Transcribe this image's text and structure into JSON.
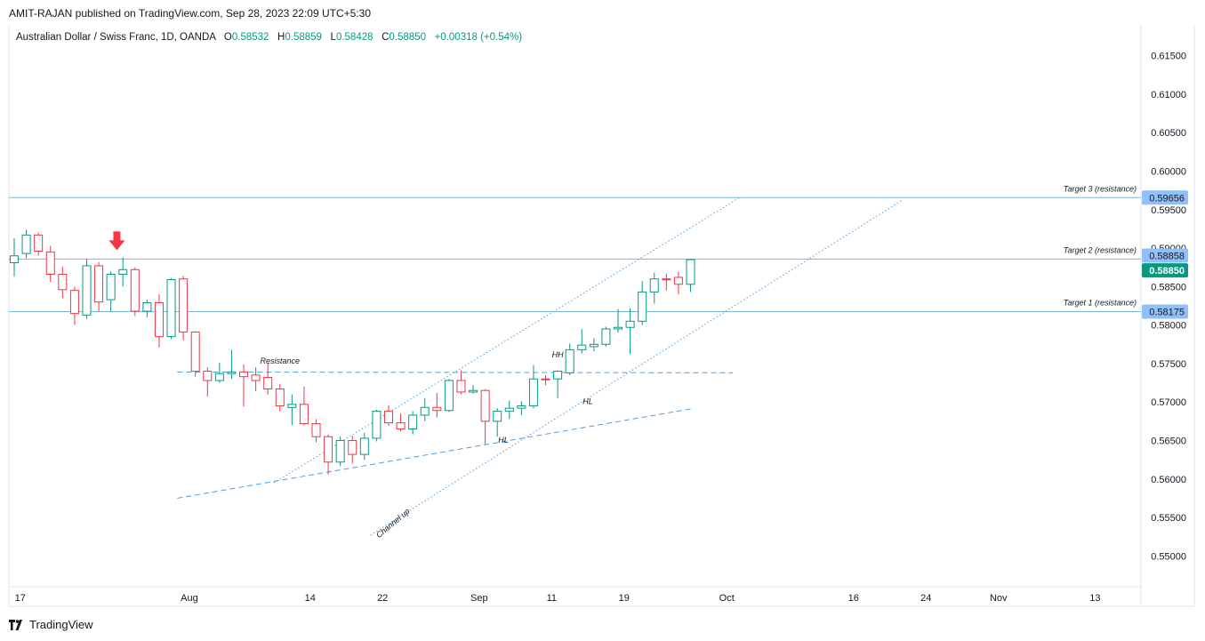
{
  "header": {
    "published": "AMIT-RAJAN published on TradingView.com, Sep 28, 2023 22:09 UTC+5:30"
  },
  "symbol": {
    "name": "Australian Dollar / Swiss Franc, 1D, OANDA",
    "open_label": "O",
    "open": "0.58532",
    "high_label": "H",
    "high": "0.58859",
    "low_label": "L",
    "low": "0.58428",
    "close_label": "C",
    "close": "0.58850",
    "change": "+0.00318 (+0.54%)"
  },
  "footer": {
    "brand": "TradingView"
  },
  "colors": {
    "up": "#089981",
    "down": "#f23645",
    "candle_up_fill": "#ffffff",
    "candle_down_fill": "#ffffff",
    "hline": "#7fb5d5",
    "channel": "#4f9fe0",
    "price_tag_blue": "#90bff9",
    "price_tag_green": "#089981",
    "arrow": "#f23645"
  },
  "chart_data": {
    "type": "candlestick",
    "instrument": "AUDCHF",
    "timeframe": "1D",
    "ylim": [
      0.546,
      0.619
    ],
    "yticks": [
      "0.61500",
      "0.61000",
      "0.60500",
      "0.60000",
      "0.59500",
      "0.59000",
      "0.58500",
      "0.58000",
      "0.57500",
      "0.57000",
      "0.56500",
      "0.56000",
      "0.55500",
      "0.55000"
    ],
    "xticks": [
      {
        "label": "17",
        "idx": 0.5
      },
      {
        "label": "Aug",
        "idx": 14.5
      },
      {
        "label": "14",
        "idx": 24.5
      },
      {
        "label": "22",
        "idx": 30.5
      },
      {
        "label": "Sep",
        "idx": 38.5
      },
      {
        "label": "11",
        "idx": 44.5
      },
      {
        "label": "19",
        "idx": 50.5
      },
      {
        "label": "Oct",
        "idx": 59
      },
      {
        "label": "16",
        "idx": 69.5
      },
      {
        "label": "24",
        "idx": 75.5
      },
      {
        "label": "Nov",
        "idx": 81.5
      },
      {
        "label": "13",
        "idx": 89.5
      }
    ],
    "candles": [
      {
        "o": 0.5881,
        "h": 0.5913,
        "l": 0.5863,
        "c": 0.589
      },
      {
        "o": 0.5893,
        "h": 0.5924,
        "l": 0.5887,
        "c": 0.5917
      },
      {
        "o": 0.5917,
        "h": 0.592,
        "l": 0.589,
        "c": 0.5896
      },
      {
        "o": 0.5895,
        "h": 0.5903,
        "l": 0.5856,
        "c": 0.5866
      },
      {
        "o": 0.5866,
        "h": 0.5876,
        "l": 0.5835,
        "c": 0.5846
      },
      {
        "o": 0.5845,
        "h": 0.585,
        "l": 0.58,
        "c": 0.5815
      },
      {
        "o": 0.5813,
        "h": 0.5886,
        "l": 0.5808,
        "c": 0.5877
      },
      {
        "o": 0.5877,
        "h": 0.5882,
        "l": 0.5818,
        "c": 0.583
      },
      {
        "o": 0.5833,
        "h": 0.587,
        "l": 0.5818,
        "c": 0.5866
      },
      {
        "o": 0.5866,
        "h": 0.5888,
        "l": 0.585,
        "c": 0.5872
      },
      {
        "o": 0.5872,
        "h": 0.5875,
        "l": 0.5812,
        "c": 0.5818
      },
      {
        "o": 0.5818,
        "h": 0.5833,
        "l": 0.581,
        "c": 0.5829
      },
      {
        "o": 0.5829,
        "h": 0.584,
        "l": 0.5771,
        "c": 0.5785
      },
      {
        "o": 0.5785,
        "h": 0.5861,
        "l": 0.5782,
        "c": 0.5859
      },
      {
        "o": 0.586,
        "h": 0.5864,
        "l": 0.578,
        "c": 0.5791
      },
      {
        "o": 0.5791,
        "h": 0.5792,
        "l": 0.5733,
        "c": 0.574
      },
      {
        "o": 0.574,
        "h": 0.5745,
        "l": 0.5707,
        "c": 0.5728
      },
      {
        "o": 0.5728,
        "h": 0.5751,
        "l": 0.5725,
        "c": 0.5737
      },
      {
        "o": 0.5737,
        "h": 0.5768,
        "l": 0.573,
        "c": 0.5739
      },
      {
        "o": 0.5739,
        "h": 0.5749,
        "l": 0.5694,
        "c": 0.5733
      },
      {
        "o": 0.5735,
        "h": 0.5745,
        "l": 0.5714,
        "c": 0.5728
      },
      {
        "o": 0.5732,
        "h": 0.5751,
        "l": 0.571,
        "c": 0.5717
      },
      {
        "o": 0.5717,
        "h": 0.5723,
        "l": 0.5688,
        "c": 0.5695
      },
      {
        "o": 0.5693,
        "h": 0.571,
        "l": 0.567,
        "c": 0.5697
      },
      {
        "o": 0.5697,
        "h": 0.572,
        "l": 0.567,
        "c": 0.5672
      },
      {
        "o": 0.5672,
        "h": 0.5678,
        "l": 0.5648,
        "c": 0.5655
      },
      {
        "o": 0.5655,
        "h": 0.5658,
        "l": 0.5606,
        "c": 0.5622
      },
      {
        "o": 0.5622,
        "h": 0.5655,
        "l": 0.5617,
        "c": 0.565
      },
      {
        "o": 0.565,
        "h": 0.5656,
        "l": 0.562,
        "c": 0.5632
      },
      {
        "o": 0.5632,
        "h": 0.566,
        "l": 0.5625,
        "c": 0.5653
      },
      {
        "o": 0.5653,
        "h": 0.569,
        "l": 0.5649,
        "c": 0.5688
      },
      {
        "o": 0.5688,
        "h": 0.5696,
        "l": 0.5669,
        "c": 0.5673
      },
      {
        "o": 0.5673,
        "h": 0.5685,
        "l": 0.5662,
        "c": 0.5665
      },
      {
        "o": 0.5665,
        "h": 0.5688,
        "l": 0.5658,
        "c": 0.5683
      },
      {
        "o": 0.5683,
        "h": 0.5705,
        "l": 0.5675,
        "c": 0.5693
      },
      {
        "o": 0.5693,
        "h": 0.5712,
        "l": 0.568,
        "c": 0.5689
      },
      {
        "o": 0.5689,
        "h": 0.573,
        "l": 0.5687,
        "c": 0.5728
      },
      {
        "o": 0.5728,
        "h": 0.5741,
        "l": 0.571,
        "c": 0.5713
      },
      {
        "o": 0.5713,
        "h": 0.5722,
        "l": 0.5711,
        "c": 0.5715
      },
      {
        "o": 0.5715,
        "h": 0.5717,
        "l": 0.5645,
        "c": 0.5675
      },
      {
        "o": 0.5675,
        "h": 0.5692,
        "l": 0.5655,
        "c": 0.5688
      },
      {
        "o": 0.5688,
        "h": 0.5702,
        "l": 0.5678,
        "c": 0.5692
      },
      {
        "o": 0.5692,
        "h": 0.5701,
        "l": 0.5683,
        "c": 0.5695
      },
      {
        "o": 0.5695,
        "h": 0.5748,
        "l": 0.5692,
        "c": 0.573
      },
      {
        "o": 0.573,
        "h": 0.5735,
        "l": 0.5722,
        "c": 0.5729
      },
      {
        "o": 0.573,
        "h": 0.5741,
        "l": 0.5705,
        "c": 0.574
      },
      {
        "o": 0.5738,
        "h": 0.5776,
        "l": 0.5735,
        "c": 0.5768
      },
      {
        "o": 0.5768,
        "h": 0.5795,
        "l": 0.5763,
        "c": 0.5774
      },
      {
        "o": 0.5772,
        "h": 0.5783,
        "l": 0.5766,
        "c": 0.5775
      },
      {
        "o": 0.5775,
        "h": 0.5798,
        "l": 0.5772,
        "c": 0.5795
      },
      {
        "o": 0.5795,
        "h": 0.5821,
        "l": 0.579,
        "c": 0.5797
      },
      {
        "o": 0.5797,
        "h": 0.5822,
        "l": 0.5762,
        "c": 0.5805
      },
      {
        "o": 0.5805,
        "h": 0.5857,
        "l": 0.58,
        "c": 0.5843
      },
      {
        "o": 0.5843,
        "h": 0.5868,
        "l": 0.5828,
        "c": 0.586
      },
      {
        "o": 0.586,
        "h": 0.5867,
        "l": 0.5845,
        "c": 0.5859
      },
      {
        "o": 0.5862,
        "h": 0.5869,
        "l": 0.584,
        "c": 0.5853
      },
      {
        "o": 0.5853,
        "h": 0.5886,
        "l": 0.5843,
        "c": 0.5885
      }
    ],
    "levels": [
      {
        "label": "Target 3 (resistance)",
        "price": 0.59656,
        "tag": "0.59656"
      },
      {
        "label": "Target 2 (resistance)",
        "price": 0.58858,
        "tag": "0.58858"
      },
      {
        "label": "Target 1 (resistance)",
        "price": 0.58175,
        "tag": "0.58175"
      }
    ],
    "last_price_tag": "0.58850",
    "annotations": [
      {
        "text": "Resistance",
        "idx": 22,
        "price": 0.575
      },
      {
        "text": "HH",
        "idx": 45,
        "price": 0.5758
      },
      {
        "text": "HL",
        "idx": 47.5,
        "price": 0.56975
      },
      {
        "text": "HL",
        "idx": 40.5,
        "price": 0.5647
      },
      {
        "text": "Channel up",
        "idx": 31.5,
        "price": 0.554
      }
    ],
    "lines": [
      {
        "name": "resistance-line",
        "style": "dashed",
        "x1": 13.5,
        "y1": 0.5739,
        "x2": 59.5,
        "y2": 0.5738
      },
      {
        "name": "support-trendline",
        "style": "dashed",
        "x1": 13.5,
        "y1": 0.5575,
        "x2": 56,
        "y2": 0.5691
      },
      {
        "name": "channel-lower",
        "style": "dotted",
        "x1": 29.5,
        "y1": 0.5527,
        "x2": 73.5,
        "y2": 0.5962
      },
      {
        "name": "channel-upper",
        "style": "dotted",
        "x1": 21.5,
        "y1": 0.5595,
        "x2": 60,
        "y2": 0.5965
      }
    ],
    "signal_arrow": {
      "direction": "down",
      "idx": 8.5,
      "price": 0.591
    }
  }
}
